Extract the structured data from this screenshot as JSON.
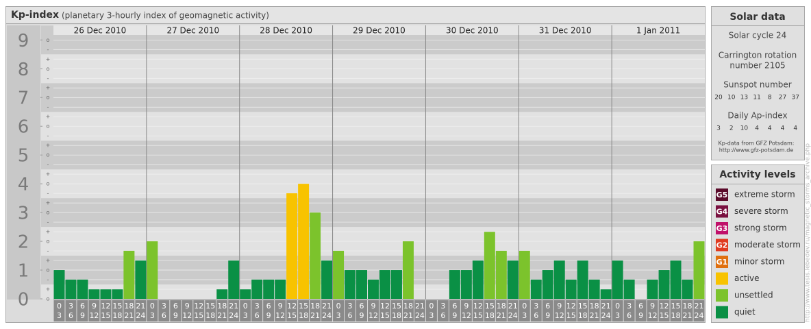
{
  "title": "Kp-index",
  "subtitle": "(planetary 3-hourly index of geomagnetic activity)",
  "chart_data": {
    "type": "bar",
    "days": [
      "26 Dec 2010",
      "27 Dec 2010",
      "28 Dec 2010",
      "29 Dec 2010",
      "30 Dec 2010",
      "31 Dec 2010",
      "1 Jan 2011"
    ],
    "hours": [
      {
        "start": "0",
        "end": "3"
      },
      {
        "start": "3",
        "end": "6"
      },
      {
        "start": "6",
        "end": "9"
      },
      {
        "start": "9",
        "end": "12"
      },
      {
        "start": "12",
        "end": "15"
      },
      {
        "start": "15",
        "end": "18"
      },
      {
        "start": "18",
        "end": "21"
      },
      {
        "start": "21",
        "end": "24"
      }
    ],
    "values": [
      1,
      0.67,
      0.67,
      0.33,
      0.33,
      0.33,
      1.67,
      1.33,
      2,
      0,
      0,
      0,
      0,
      0,
      0.33,
      1.33,
      0.33,
      0.67,
      0.67,
      0.67,
      3.67,
      4,
      3,
      1.33,
      1.67,
      1,
      1,
      0.67,
      1,
      1,
      2,
      0,
      0,
      0,
      1,
      1,
      1.33,
      2.33,
      1.67,
      1.33,
      1.67,
      0.67,
      1,
      1.33,
      0.67,
      1.33,
      0.67,
      0.33,
      1.33,
      0.67,
      0,
      0.67,
      1,
      1.33,
      0.67,
      2
    ],
    "colors": [
      "#0a9045",
      "#0a9045",
      "#0a9045",
      "#0a9045",
      "#0a9045",
      "#0a9045",
      "#7cc32c",
      "#0a9045",
      "#7cc32c",
      "#0a9045",
      "#0a9045",
      "#0a9045",
      "#0a9045",
      "#0a9045",
      "#0a9045",
      "#0a9045",
      "#0a9045",
      "#0a9045",
      "#0a9045",
      "#0a9045",
      "#f8c300",
      "#f8c300",
      "#7cc32c",
      "#0a9045",
      "#7cc32c",
      "#0a9045",
      "#0a9045",
      "#0a9045",
      "#0a9045",
      "#0a9045",
      "#7cc32c",
      "#0a9045",
      "#0a9045",
      "#0a9045",
      "#0a9045",
      "#0a9045",
      "#0a9045",
      "#7cc32c",
      "#7cc32c",
      "#0a9045",
      "#7cc32c",
      "#0a9045",
      "#0a9045",
      "#0a9045",
      "#0a9045",
      "#0a9045",
      "#0a9045",
      "#0a9045",
      "#0a9045",
      "#0a9045",
      "#0a9045",
      "#0a9045",
      "#0a9045",
      "#0a9045",
      "#0a9045",
      "#7cc32c"
    ],
    "ylim": [
      0,
      9.15
    ],
    "yticks": [
      0,
      1,
      2,
      3,
      4,
      5,
      6,
      7,
      8,
      9
    ],
    "sublabels": [
      "o",
      "+",
      "-"
    ]
  },
  "solar": {
    "title": "Solar data",
    "cycle": "Solar cycle 24",
    "rotation": [
      "Carrington rotation",
      "number 2105"
    ],
    "sunspot_label": "Sunspot number",
    "sunspots": [
      "20",
      "10",
      "13",
      "11",
      "8",
      "27",
      "37"
    ],
    "ap_label": "Daily Ap-index",
    "ap": [
      "3",
      "2",
      "10",
      "4",
      "4",
      "4",
      "4"
    ],
    "source": [
      "Kp-data from GFZ Potsdam:",
      "http://www.gfz-potsdam.de"
    ]
  },
  "legend": {
    "title": "Activity levels",
    "items": [
      {
        "badge": "G5",
        "label": "extreme storm",
        "color": "#5a0a2a"
      },
      {
        "badge": "G4",
        "label": "severe storm",
        "color": "#7a1040"
      },
      {
        "badge": "G3",
        "label": "strong storm",
        "color": "#c0106a"
      },
      {
        "badge": "G2",
        "label": "moderate storm",
        "color": "#e03a20"
      },
      {
        "badge": "G1",
        "label": "minor storm",
        "color": "#e07010"
      },
      {
        "badge": null,
        "label": "active",
        "color": "#f8c300"
      },
      {
        "badge": null,
        "label": "unsettled",
        "color": "#7cc32c"
      },
      {
        "badge": null,
        "label": "quiet",
        "color": "#0a9045"
      }
    ]
  },
  "watermark": "http://www.tesis.lebedev.ru/magnetic_storms_archive.php"
}
